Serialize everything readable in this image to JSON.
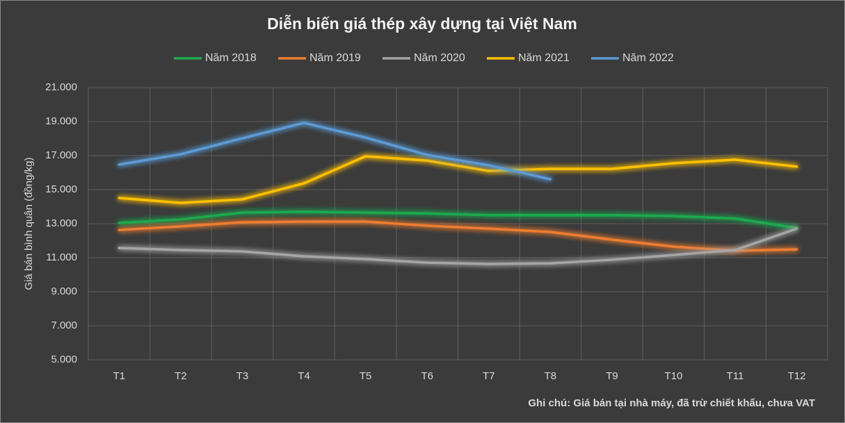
{
  "chart_data": {
    "type": "line",
    "title": "Diễn biến giá thép xây dựng tại Việt Nam",
    "y_label": "Giá bán bình quân (đồng/kg)",
    "note": "Ghi chú: Giá bán tại nhà máy, đã trừ chiết khấu, chưa VAT",
    "categories": [
      "T1",
      "T2",
      "T3",
      "T4",
      "T5",
      "T6",
      "T7",
      "T8",
      "T9",
      "T10",
      "T11",
      "T12"
    ],
    "series": [
      {
        "name": "Năm 2018",
        "color": "#1faa4f",
        "values": [
          13040,
          13250,
          13650,
          13700,
          13650,
          13600,
          13500,
          13500,
          13500,
          13450,
          13300,
          12750
        ]
      },
      {
        "name": "Năm 2019",
        "color": "#ed7d31",
        "values": [
          12630,
          12840,
          13080,
          13120,
          13120,
          12880,
          12710,
          12510,
          12060,
          11650,
          11410,
          11490
        ]
      },
      {
        "name": "Năm 2020",
        "color": "#a5a5a5",
        "values": [
          11570,
          11450,
          11370,
          11080,
          10920,
          10710,
          10630,
          10670,
          10880,
          11160,
          11450,
          12710
        ]
      },
      {
        "name": "Năm 2021",
        "color": "#ffc000",
        "values": [
          14510,
          14220,
          14430,
          15370,
          16960,
          16710,
          16100,
          16220,
          16220,
          16550,
          16760,
          16350
        ]
      },
      {
        "name": "Năm 2022",
        "color": "#5b9bd5",
        "values": [
          16470,
          17080,
          18020,
          18920,
          18060,
          17040,
          16430,
          15610,
          null,
          null,
          null,
          null
        ]
      }
    ],
    "ylim": [
      5000,
      21000
    ],
    "yticks": [
      {
        "value": 5000,
        "label": "5.000"
      },
      {
        "value": 7000,
        "label": "7.000"
      },
      {
        "value": 9000,
        "label": "9.000"
      },
      {
        "value": 11000,
        "label": "11.000"
      },
      {
        "value": 13000,
        "label": "13.000"
      },
      {
        "value": 15000,
        "label": "15.000"
      },
      {
        "value": 17000,
        "label": "17.000"
      },
      {
        "value": 19000,
        "label": "19.000"
      },
      {
        "value": 21000,
        "label": "21.000"
      }
    ],
    "grid": true,
    "legend": "top"
  }
}
